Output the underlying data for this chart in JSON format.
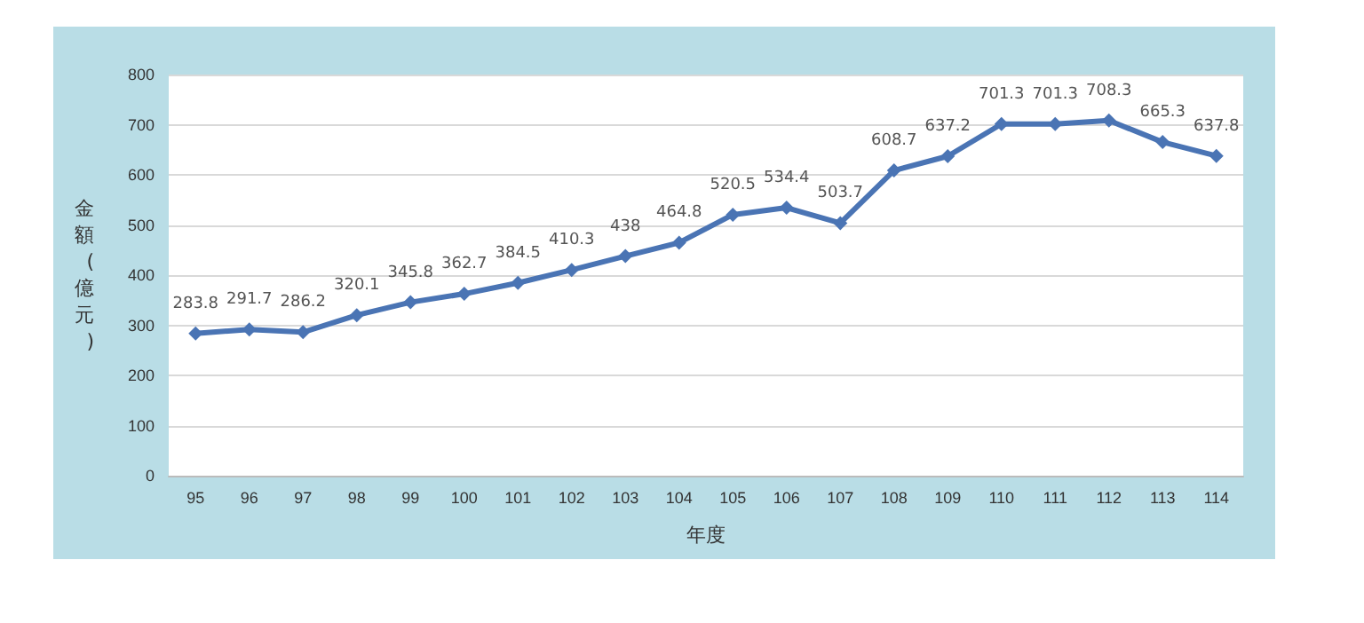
{
  "chart_data": {
    "type": "line",
    "xlabel": "年度",
    "ylabel": "金額(億元)",
    "categories": [
      "95",
      "96",
      "97",
      "98",
      "99",
      "100",
      "101",
      "102",
      "103",
      "104",
      "105",
      "106",
      "107",
      "108",
      "109",
      "110",
      "111",
      "112",
      "113",
      "114"
    ],
    "series": [
      {
        "color": "#4a74b4",
        "values": [
          283.8,
          291.7,
          286.2,
          320.1,
          345.8,
          362.7,
          384.5,
          410.3,
          438,
          464.8,
          520.5,
          534.4,
          503.7,
          608.7,
          637.2,
          701.3,
          701.3,
          708.3,
          665.3,
          637.8
        ]
      }
    ],
    "ylim": [
      0,
      800
    ],
    "yticks": [
      0,
      100,
      200,
      300,
      400,
      500,
      600,
      700,
      800
    ],
    "grid": "y",
    "marker": "diamond",
    "line_style": "solid",
    "data_labels": true
  }
}
